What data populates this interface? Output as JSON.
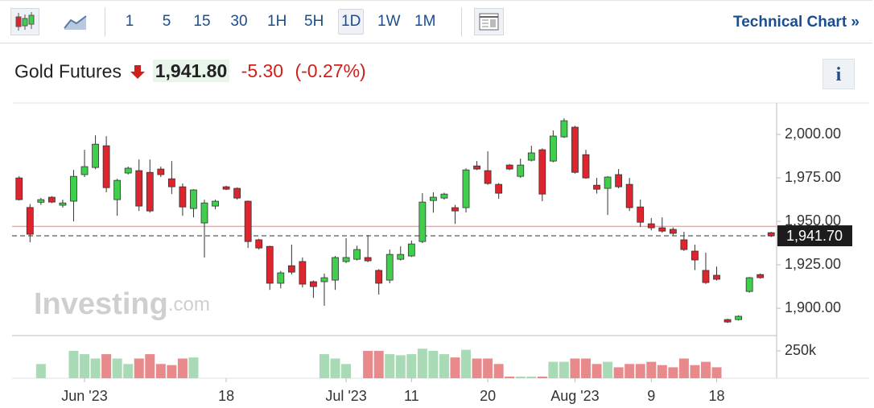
{
  "toolbar": {
    "intervals": [
      "1",
      "5",
      "15",
      "30",
      "1H",
      "5H",
      "1D",
      "1W",
      "1M"
    ],
    "active_index": 6,
    "technical_chart": "Technical Chart »"
  },
  "header": {
    "name": "Gold Futures",
    "price": "1,941.80",
    "change": "-5.30",
    "change_pct": "(-0.27%)"
  },
  "info": "i",
  "watermark": {
    "brand": "Investing",
    "suffix": ".com"
  },
  "chart_data": {
    "type": "candlestick",
    "categories": [
      null,
      null,
      null,
      null,
      null,
      null,
      "Jun '23",
      null,
      null,
      null,
      null,
      null,
      null,
      null,
      null,
      null,
      null,
      null,
      null,
      "18",
      null,
      null,
      null,
      null,
      null,
      null,
      null,
      null,
      null,
      null,
      "Jul '23",
      null,
      null,
      null,
      null,
      null,
      "11",
      null,
      null,
      null,
      null,
      null,
      null,
      "20",
      null,
      null,
      null,
      null,
      null,
      null,
      null,
      "Aug '23",
      null,
      null,
      null,
      null,
      null,
      null,
      "9",
      null,
      null,
      null,
      null,
      null,
      "18",
      null,
      null,
      null,
      null,
      null
    ],
    "open": [
      1975.0,
      1958.0,
      1961.0,
      1963.9,
      1959.3,
      1961.6,
      1976.9,
      1981.0,
      1993.5,
      1962.5,
      1977.8,
      1979.2,
      1978.2,
      1980.1,
      1974.5,
      1969.9,
      1957.4,
      1949.1,
      1958.8,
      1969.9,
      1969.0,
      1961.6,
      1939.4,
      1935.6,
      1914.4,
      1924.5,
      1926.9,
      1915.3,
      1915.3,
      1916.2,
      1926.9,
      1928.2,
      1929.2,
      1921.8,
      1916.2,
      1928.2,
      1930.1,
      1938.4,
      1962.0,
      1963.4,
      1957.9,
      1957.9,
      1981.9,
      1979.2,
      1971.3,
      1982.4,
      1975.9,
      1985.2,
      1991.2,
      1984.7,
      1998.6,
      2004.2,
      1988.4,
      1970.8,
      1969.0,
      1976.9,
      1971.3,
      1958.3,
      1948.6,
      1946.3,
      1945.4,
      1939.4,
      1932.9,
      1921.8,
      1919.0,
      1893.5,
      1893.5,
      1909.7,
      1919.4,
      1943.5
    ],
    "high": [
      1976.0,
      1960.0,
      1963.5,
      1964.5,
      1962.5,
      1979.6,
      1991.2,
      1999.5,
      1999.0,
      1974.5,
      1981.5,
      1985.6,
      1985.6,
      1981.5,
      1984.7,
      1971.8,
      1968.5,
      1962.5,
      1962.5,
      1970.5,
      1969.5,
      1962.0,
      1940.0,
      1936.0,
      1921.5,
      1936.6,
      1929.2,
      1916.0,
      1920.0,
      1930.1,
      1940.3,
      1936.0,
      1942.1,
      1922.5,
      1933.8,
      1935.6,
      1939.0,
      1966.2,
      1966.7,
      1966.5,
      1959.5,
      1980.5,
      1984.7,
      1990.3,
      1972.0,
      1983.0,
      1986.1,
      1993.5,
      1992.0,
      2002.3,
      2009.3,
      2005.0,
      1991.2,
      1975.0,
      1976.0,
      1980.1,
      1975.0,
      1962.5,
      1951.9,
      1952.3,
      1946.5,
      1944.0,
      1936.6,
      1932.0,
      1924.0,
      1894.0,
      1896.0,
      1918.0,
      1920.0,
      1944.0
    ],
    "low": [
      1962.0,
      1938.0,
      1959.5,
      1960.5,
      1957.9,
      1950.0,
      1975.5,
      1980.0,
      1966.7,
      1953.2,
      1977.0,
      1956.0,
      1955.0,
      1975.5,
      1965.7,
      1953.2,
      1952.3,
      1929.2,
      1957.0,
      1968.0,
      1962.5,
      1934.7,
      1933.8,
      1910.6,
      1911.5,
      1919.5,
      1912.0,
      1906.0,
      1901.4,
      1910.6,
      1926.0,
      1927.5,
      1926.5,
      1907.9,
      1914.4,
      1927.5,
      1929.5,
      1937.5,
      1955.0,
      1962.5,
      1948.6,
      1955.1,
      1979.5,
      1971.0,
      1963.0,
      1979.5,
      1975.0,
      1984.5,
      1961.6,
      1984.0,
      1998.0,
      1977.5,
      1974.5,
      1966.0,
      1953.7,
      1969.0,
      1956.0,
      1946.8,
      1944.9,
      1943.5,
      1942.0,
      1933.0,
      1922.0,
      1914.0,
      1916.0,
      1891.5,
      1893.0,
      1909.0,
      1917.0,
      1941.0
    ],
    "close": [
      1962.5,
      1942.6,
      1962.5,
      1961.1,
      1960.6,
      1975.9,
      1981.5,
      1994.4,
      1969.4,
      1973.6,
      1980.6,
      1958.8,
      1956.0,
      1976.9,
      1969.9,
      1958.3,
      1968.1,
      1960.6,
      1961.6,
      1968.5,
      1963.4,
      1938.4,
      1934.7,
      1914.4,
      1920.4,
      1920.8,
      1913.9,
      1912.5,
      1917.6,
      1929.2,
      1929.2,
      1933.8,
      1927.3,
      1914.4,
      1931.0,
      1931.0,
      1937.0,
      1961.1,
      1963.9,
      1965.7,
      1956.0,
      1979.6,
      1980.1,
      1971.8,
      1966.2,
      1980.1,
      1982.4,
      1989.4,
      1965.7,
      1999.1,
      2007.9,
      1978.2,
      1975.0,
      1968.5,
      1975.5,
      1969.9,
      1957.9,
      1949.5,
      1946.3,
      1944.4,
      1943.1,
      1933.8,
      1927.8,
      1914.8,
      1916.7,
      1892.1,
      1895.4,
      1917.6,
      1917.6,
      1941.7
    ],
    "up_color": "#3fcf4d",
    "down_color": "#e0242e",
    "ylim": [
      1884.3,
      2018.1
    ],
    "yticks": [
      {
        "value": 1900,
        "label": "1,900.00"
      },
      {
        "value": 1925,
        "label": "1,925.00"
      },
      {
        "value": 1950,
        "label": "1,950.00"
      },
      {
        "value": 1975,
        "label": "1,975.00"
      },
      {
        "value": 2000,
        "label": "2,000.00"
      }
    ],
    "last_price": {
      "value": 1941.7,
      "label": "1,941.70"
    },
    "prev_close": 1947.1,
    "volume": {
      "values": [
        null,
        null,
        130000,
        null,
        null,
        250000,
        220000,
        180000,
        220000,
        180000,
        130000,
        180000,
        220000,
        130000,
        120000,
        180000,
        190000,
        null,
        null,
        null,
        null,
        null,
        null,
        null,
        null,
        null,
        null,
        null,
        220000,
        180000,
        130000,
        null,
        250000,
        250000,
        220000,
        210000,
        220000,
        270000,
        250000,
        220000,
        190000,
        260000,
        180000,
        180000,
        130000,
        15000,
        15000,
        15000,
        15000,
        150000,
        150000,
        180000,
        180000,
        130000,
        150000,
        100000,
        130000,
        130000,
        150000,
        120000,
        100000,
        180000,
        120000,
        150000,
        100000,
        null,
        null,
        null,
        null,
        null
      ],
      "ylim": [
        0,
        390000
      ],
      "yticks": [
        {
          "value": 250000,
          "label": "250k"
        }
      ],
      "up_color": "#a8dbb5",
      "down_color": "#e8898c"
    }
  }
}
